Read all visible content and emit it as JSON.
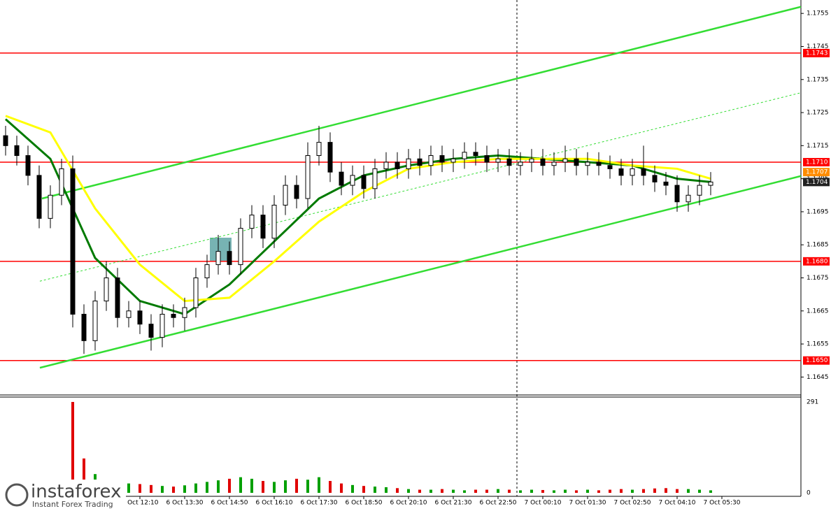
{
  "chart_data": {
    "type": "candlestick",
    "ylim": [
      1.164,
      1.1758
    ],
    "yticks": [
      1.1645,
      1.1655,
      1.1665,
      1.1675,
      1.1685,
      1.1695,
      1.1705,
      1.1715,
      1.1725,
      1.1735,
      1.1745,
      1.1755
    ],
    "xticks": [
      {
        "value": 12,
        "label": "6 Oct 12:10"
      },
      {
        "value": 16,
        "label": "6 Oct 13:30"
      },
      {
        "value": 20,
        "label": "6 Oct 14:50"
      },
      {
        "value": 24,
        "label": "6 Oct 16:10"
      },
      {
        "value": 28,
        "label": "6 Oct 17:30"
      },
      {
        "value": 32,
        "label": "6 Oct 18:50"
      },
      {
        "value": 36,
        "label": "6 Oct 20:10"
      },
      {
        "value": 40,
        "label": "6 Oct 21:30"
      },
      {
        "value": 44,
        "label": "6 Oct 22:50"
      },
      {
        "value": 48,
        "label": "7 Oct 00:10"
      },
      {
        "value": 52,
        "label": "7 Oct 01:30"
      },
      {
        "value": 56,
        "label": "7 Oct 02:50"
      },
      {
        "value": 60,
        "label": "7 Oct 04:10"
      },
      {
        "value": 64,
        "label": "7 Oct 05:30"
      }
    ],
    "open": [
      1.1718,
      1.1715,
      1.1712,
      1.1706,
      1.1693,
      1.17,
      1.1708,
      1.1664,
      1.1656,
      1.1668,
      1.1675,
      1.1663,
      1.1665,
      1.1661,
      1.1657,
      1.1664,
      1.1663,
      1.1666,
      1.1675,
      1.1679,
      1.1683,
      1.1679,
      1.169,
      1.1694,
      1.1687,
      1.1697,
      1.1703,
      1.1699,
      1.1712,
      1.1716,
      1.1707,
      1.1703,
      1.1706,
      1.1702,
      1.1708,
      1.171,
      1.1708,
      1.1711,
      1.1709,
      1.1712,
      1.171,
      1.1711,
      1.1713,
      1.1712,
      1.171,
      1.1711,
      1.1709,
      1.171,
      1.1711,
      1.1709,
      1.171,
      1.1711,
      1.1709,
      1.171,
      1.1709,
      1.1708,
      1.1706,
      1.1708,
      1.1706,
      1.1704,
      1.1703,
      1.1698,
      1.17,
      1.1703
    ],
    "high": [
      1.1721,
      1.1718,
      1.1715,
      1.1709,
      1.1703,
      1.1711,
      1.1712,
      1.1667,
      1.1671,
      1.168,
      1.1678,
      1.1668,
      1.1668,
      1.1664,
      1.1667,
      1.1667,
      1.1669,
      1.1678,
      1.1682,
      1.1688,
      1.1686,
      1.1693,
      1.1697,
      1.1697,
      1.17,
      1.1706,
      1.1706,
      1.1716,
      1.1721,
      1.1719,
      1.171,
      1.1709,
      1.1709,
      1.1711,
      1.1713,
      1.1713,
      1.1714,
      1.1714,
      1.1715,
      1.1715,
      1.1714,
      1.1716,
      1.1716,
      1.1715,
      1.1714,
      1.1714,
      1.1713,
      1.1714,
      1.1714,
      1.1713,
      1.1715,
      1.1714,
      1.1713,
      1.1713,
      1.1712,
      1.1711,
      1.1711,
      1.1715,
      1.1709,
      1.1707,
      1.1706,
      1.1703,
      1.1706,
      1.1707
    ],
    "low": [
      1.1712,
      1.1709,
      1.1703,
      1.169,
      1.169,
      1.1697,
      1.166,
      1.1652,
      1.1653,
      1.1665,
      1.166,
      1.166,
      1.1658,
      1.1653,
      1.1654,
      1.166,
      1.1659,
      1.1663,
      1.1672,
      1.1676,
      1.1676,
      1.1676,
      1.1687,
      1.1684,
      1.1684,
      1.1694,
      1.1696,
      1.1696,
      1.1709,
      1.1704,
      1.17,
      1.17,
      1.1699,
      1.1699,
      1.1705,
      1.1705,
      1.1705,
      1.1706,
      1.1706,
      1.1707,
      1.1707,
      1.1708,
      1.1709,
      1.1707,
      1.1707,
      1.1706,
      1.1706,
      1.1707,
      1.1706,
      1.1706,
      1.1707,
      1.1706,
      1.1706,
      1.1706,
      1.1705,
      1.1703,
      1.1703,
      1.1703,
      1.1701,
      1.17,
      1.1695,
      1.1695,
      1.1697,
      1.17
    ],
    "close": [
      1.1715,
      1.1712,
      1.1706,
      1.1693,
      1.17,
      1.1708,
      1.1664,
      1.1656,
      1.1668,
      1.1675,
      1.1663,
      1.1665,
      1.1661,
      1.1657,
      1.1664,
      1.1663,
      1.1666,
      1.1675,
      1.1679,
      1.1683,
      1.1679,
      1.169,
      1.1694,
      1.1687,
      1.1697,
      1.1703,
      1.1699,
      1.1712,
      1.1716,
      1.1707,
      1.1703,
      1.1706,
      1.1702,
      1.1708,
      1.171,
      1.1708,
      1.1711,
      1.1709,
      1.1712,
      1.171,
      1.1711,
      1.1713,
      1.1712,
      1.171,
      1.1711,
      1.1709,
      1.171,
      1.1711,
      1.1709,
      1.171,
      1.1711,
      1.1709,
      1.171,
      1.1709,
      1.1708,
      1.1706,
      1.1708,
      1.1706,
      1.1704,
      1.1703,
      1.1698,
      1.17,
      1.1703,
      1.1704
    ],
    "series": [
      {
        "color": "#007a00",
        "x": [
          0,
          4,
          8,
          12,
          16,
          20,
          24,
          28,
          32,
          36,
          40,
          44,
          48,
          52,
          56,
          60,
          63
        ],
        "values": [
          1.1723,
          1.1711,
          1.1681,
          1.1668,
          1.1664,
          1.1673,
          1.1686,
          1.1699,
          1.1706,
          1.1709,
          1.1711,
          1.1712,
          1.1711,
          1.171,
          1.1709,
          1.1705,
          1.1704
        ]
      },
      {
        "color": "#ffff00",
        "x": [
          0,
          4,
          8,
          12,
          16,
          20,
          24,
          28,
          32,
          36,
          40,
          44,
          48,
          52,
          56,
          60,
          63
        ],
        "values": [
          1.1724,
          1.1719,
          1.1696,
          1.1679,
          1.1668,
          1.1669,
          1.168,
          1.1692,
          1.1701,
          1.1708,
          1.171,
          1.1711,
          1.1711,
          1.1711,
          1.1709,
          1.1708,
          1.1705
        ]
      }
    ],
    "trendlines": [
      {
        "color": "#33dd33",
        "x": [
          3.25,
          71.06
        ],
        "values": [
          1.1699,
          1.1757
        ]
      },
      {
        "color": "#33dd33",
        "x": [
          3.06,
          71.06
        ],
        "values": [
          1.16478,
          1.17058
        ]
      },
      {
        "color": "#33dd33",
        "dashed": true,
        "x": [
          3.06,
          71.06
        ],
        "values": [
          1.1674,
          1.1731
        ]
      }
    ],
    "levels": [
      {
        "value": 1.1743,
        "label": "1.1743"
      },
      {
        "value": 1.171,
        "label": "1.1710"
      },
      {
        "value": 1.168,
        "label": "1.1680"
      },
      {
        "value": 1.165,
        "label": "1.1650"
      }
    ],
    "level_color": "#ff0000",
    "price_markers": [
      {
        "value": 1.1707,
        "label": "1.1707",
        "color": "#ff8c00"
      },
      {
        "value": 1.1704,
        "label": "1.1704",
        "color": "#222222"
      }
    ],
    "volume": {
      "values": [
        20,
        18,
        22,
        30,
        25,
        28,
        291,
        110,
        60,
        40,
        35,
        30,
        28,
        25,
        22,
        20,
        24,
        30,
        35,
        40,
        45,
        50,
        45,
        38,
        35,
        40,
        45,
        42,
        50,
        38,
        30,
        25,
        22,
        20,
        18,
        15,
        12,
        10,
        10,
        12,
        10,
        8,
        10,
        10,
        12,
        10,
        8,
        10,
        9,
        8,
        10,
        8,
        10,
        8,
        10,
        12,
        10,
        12,
        14,
        15,
        12,
        12,
        10,
        8
      ],
      "ylim": [
        0,
        291
      ],
      "yticks": [
        0,
        291
      ]
    },
    "logo": {
      "name": "instaforex",
      "tagline": "Instant Forex Trading"
    }
  }
}
